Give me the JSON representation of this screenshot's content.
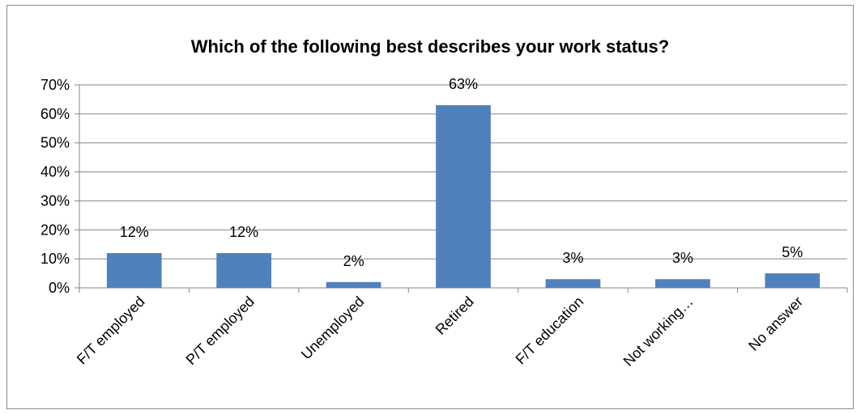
{
  "chart_data": {
    "type": "bar",
    "title": "Which of the following best describes your work status?",
    "xlabel": "",
    "ylabel": "",
    "categories": [
      "F/T employed",
      "P/T employed",
      "Unemployed",
      "Retired",
      "F/T education",
      "Not working…",
      "No answer"
    ],
    "values": [
      12,
      12,
      2,
      63,
      3,
      3,
      5
    ],
    "data_labels": [
      "12%",
      "12%",
      "2%",
      "63%",
      "3%",
      "3%",
      "5%"
    ],
    "y_ticks": [
      0,
      10,
      20,
      30,
      40,
      50,
      60,
      70
    ],
    "y_tick_labels": [
      "0%",
      "10%",
      "20%",
      "30%",
      "40%",
      "50%",
      "60%",
      "70%"
    ],
    "ylim": [
      0,
      70
    ],
    "grid": true,
    "legend": "none",
    "bar_color": "#4f81bd",
    "gridline_color": "#868686"
  }
}
